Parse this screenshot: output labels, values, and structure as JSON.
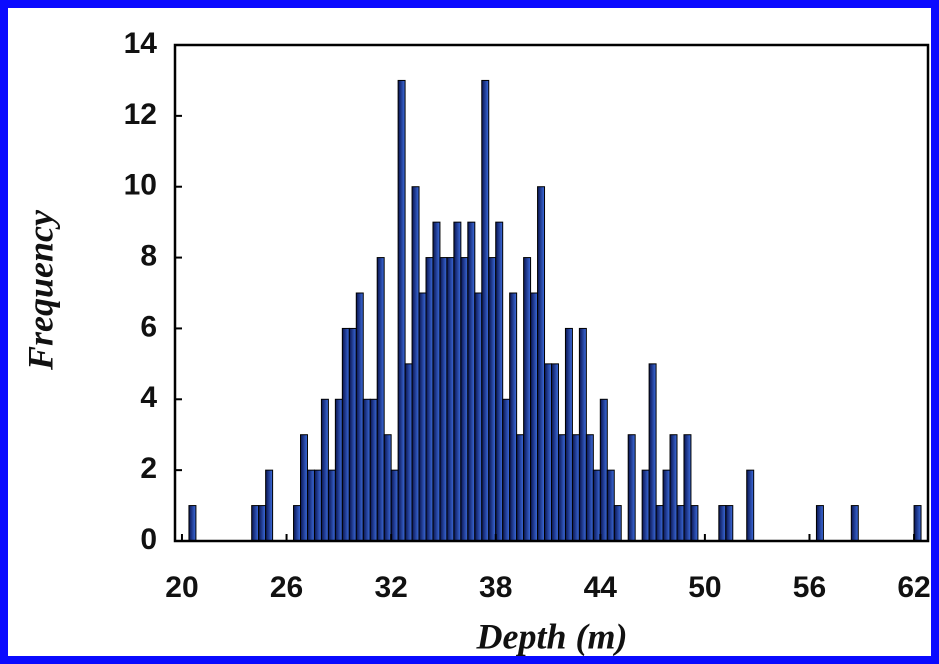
{
  "chart_data": {
    "type": "histogram",
    "x_label": "Depth (m)",
    "y_label": "Frequency",
    "bins": [
      20.4,
      20.8,
      21.2,
      21.6,
      22,
      22.4,
      22.8,
      23.2,
      23.6,
      24,
      24.4,
      24.8,
      25.2,
      25.6,
      26,
      26.4,
      26.8,
      27.2,
      27.6,
      28,
      28.4,
      28.8,
      29.2,
      29.6,
      30,
      30.4,
      30.8,
      31.2,
      31.6,
      32,
      32.4,
      32.8,
      33.2,
      33.6,
      34,
      34.4,
      34.8,
      35.2,
      35.6,
      36,
      36.4,
      36.8,
      37.2,
      37.6,
      38,
      38.4,
      38.8,
      39.2,
      39.6,
      40,
      40.4,
      40.8,
      41.2,
      41.6,
      42,
      42.4,
      42.8,
      43.2,
      43.6,
      44,
      44.4,
      44.8,
      45.2,
      45.6,
      46,
      46.4,
      46.8,
      47.2,
      47.6,
      48,
      48.4,
      48.8,
      49.2,
      49.6,
      50,
      50.4,
      50.8,
      51.2,
      51.6,
      52,
      52.4,
      52.8,
      53.2,
      53.6,
      54,
      54.4,
      54.8,
      55.2,
      55.6,
      56,
      56.4,
      56.8,
      57.2,
      57.6,
      58,
      58.4,
      58.8,
      59.2,
      59.6,
      60,
      60.4,
      60.8,
      61.2,
      61.6,
      62,
      62.4,
      62.8
    ],
    "values": [
      1,
      0,
      0,
      0,
      0,
      0,
      0,
      0,
      0,
      1,
      1,
      2,
      0,
      0,
      0,
      1,
      3,
      2,
      2,
      4,
      2,
      4,
      6,
      6,
      7,
      4,
      4,
      8,
      3,
      2,
      13,
      5,
      10,
      7,
      8,
      9,
      8,
      8,
      9,
      8,
      9,
      7,
      13,
      8,
      9,
      4,
      7,
      3,
      8,
      7,
      10,
      5,
      5,
      3,
      6,
      3,
      6,
      3,
      2,
      4,
      2,
      1,
      0,
      3,
      0,
      2,
      5,
      1,
      2,
      3,
      1,
      3,
      1,
      0,
      0,
      0,
      1,
      1,
      0,
      0,
      2,
      0,
      0,
      0,
      0,
      0,
      0,
      0,
      0,
      0,
      1,
      0,
      0,
      0,
      0,
      1,
      0,
      0,
      0,
      0,
      0,
      0,
      0,
      0,
      1,
      0
    ],
    "color": "#1c2f9c",
    "xlim": [
      19.6,
      62.8
    ],
    "xticks": [
      20,
      26,
      32,
      38,
      44,
      50,
      56,
      62
    ],
    "ylim": [
      0,
      14
    ],
    "yticks": [
      0,
      2,
      4,
      6,
      8,
      10,
      12,
      14
    ]
  }
}
